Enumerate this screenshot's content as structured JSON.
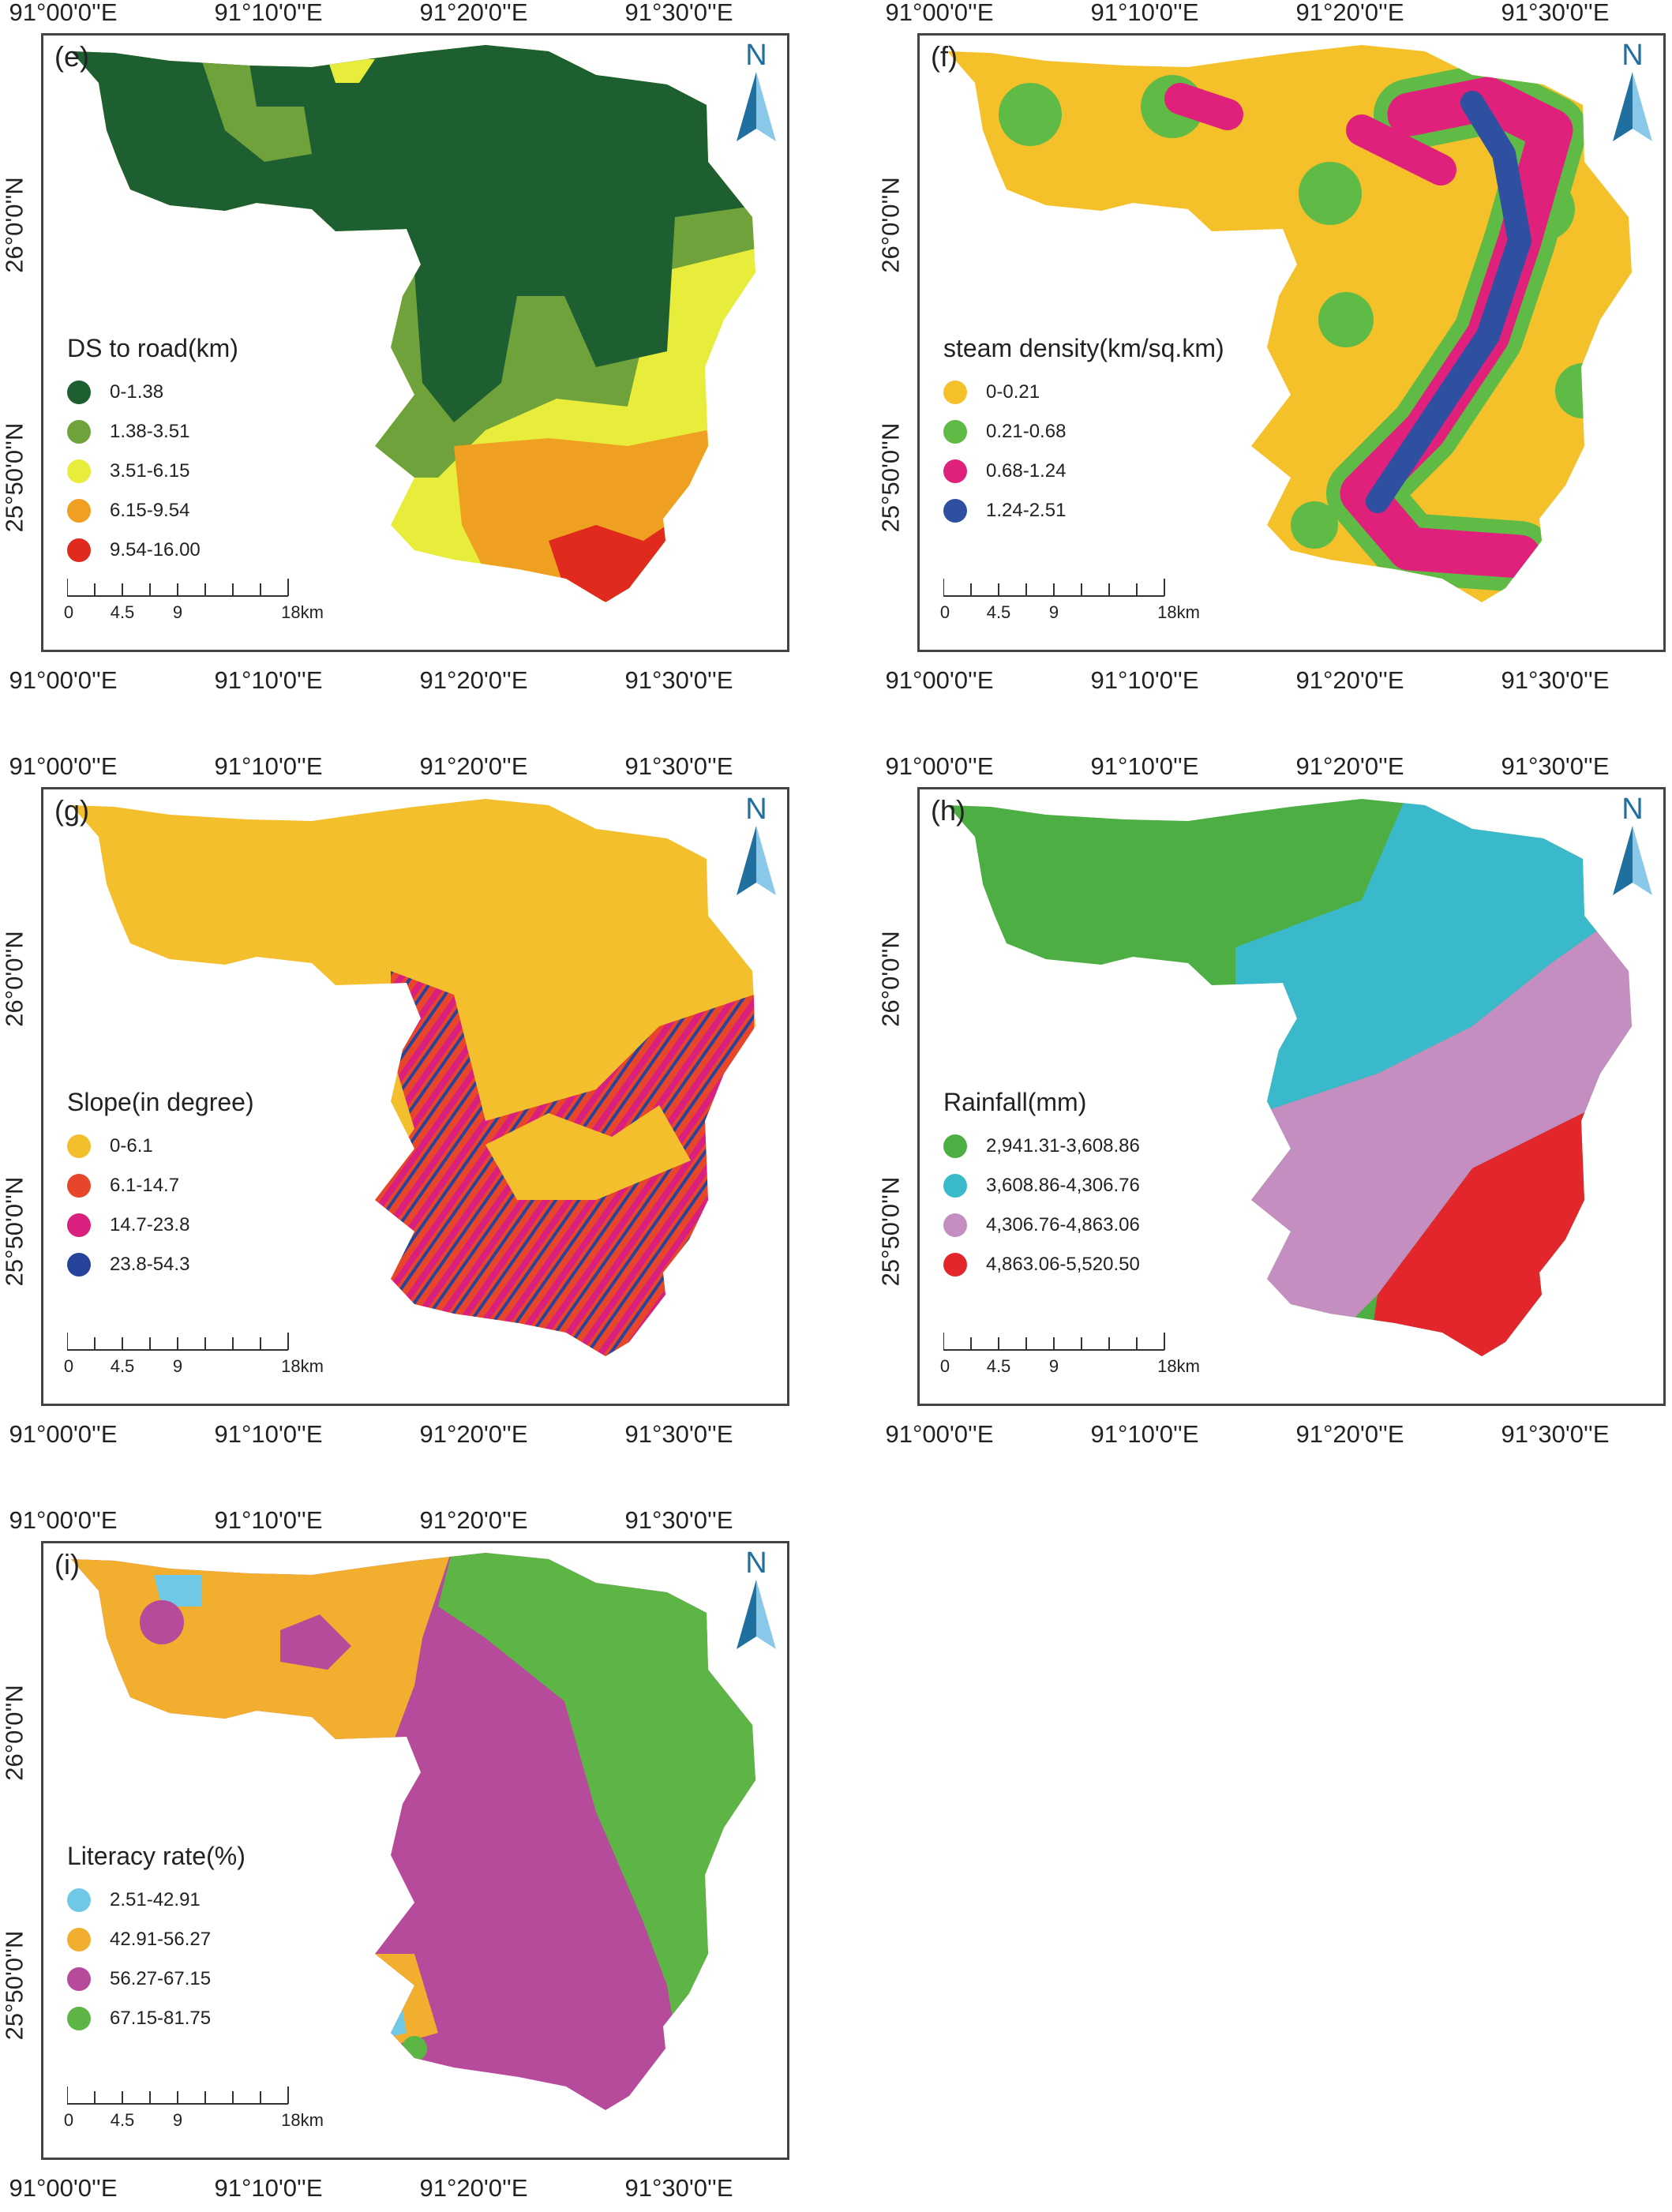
{
  "common": {
    "lon_labels": [
      "91°00'0''E",
      "91°10'0''E",
      "91°20'0''E",
      "91°30'0''E"
    ],
    "lat_labels": [
      "26°0'0''N",
      "25°50'0''N"
    ],
    "north_label": "N",
    "scale_labels": [
      "0",
      "4.5",
      "9",
      "18km"
    ]
  },
  "panels": [
    {
      "id": "e",
      "label": "(e)",
      "legend_title": "DS to road(km)",
      "items": [
        {
          "label": "0-1.38",
          "color": "#1d5f30"
        },
        {
          "label": "1.38-3.51",
          "color": "#6fa23b"
        },
        {
          "label": "3.51-6.15",
          "color": "#e8ec3a"
        },
        {
          "label": "6.15-9.54",
          "color": "#f0a020"
        },
        {
          "label": "9.54-16.00",
          "color": "#e02a1e"
        }
      ]
    },
    {
      "id": "f",
      "label": "(f)",
      "legend_title": "steam density(km/sq.km)",
      "items": [
        {
          "label": "0-0.21",
          "color": "#f5c12a"
        },
        {
          "label": "0.21-0.68",
          "color": "#5fbb46"
        },
        {
          "label": "0.68-1.24",
          "color": "#e0217c"
        },
        {
          "label": "1.24-2.51",
          "color": "#2f4fa0"
        }
      ]
    },
    {
      "id": "g",
      "label": "(g)",
      "legend_title": "Slope(in degree)",
      "items": [
        {
          "label": "0-6.1",
          "color": "#f3bf2c"
        },
        {
          "label": "6.1-14.7",
          "color": "#e8462a"
        },
        {
          "label": "14.7-23.8",
          "color": "#d9207e"
        },
        {
          "label": "23.8-54.3",
          "color": "#27449c"
        }
      ]
    },
    {
      "id": "h",
      "label": "(h)",
      "legend_title": "Rainfall(mm)",
      "items": [
        {
          "label": "2,941.31-3,608.86",
          "color": "#4cae43"
        },
        {
          "label": "3,608.86-4,306.76",
          "color": "#39b9c9"
        },
        {
          "label": "4,306.76-4,863.06",
          "color": "#c58ec0"
        },
        {
          "label": "4,863.06-5,520.50",
          "color": "#e3262b"
        }
      ]
    },
    {
      "id": "i",
      "label": "(i)",
      "legend_title": "Literacy rate(%)",
      "items": [
        {
          "label": "2.51-42.91",
          "color": "#6fc8e6"
        },
        {
          "label": "42.91-56.27",
          "color": "#f2ae2e"
        },
        {
          "label": "56.27-67.15",
          "color": "#b64b9b"
        },
        {
          "label": "67.15-81.75",
          "color": "#5cb545"
        }
      ]
    }
  ]
}
